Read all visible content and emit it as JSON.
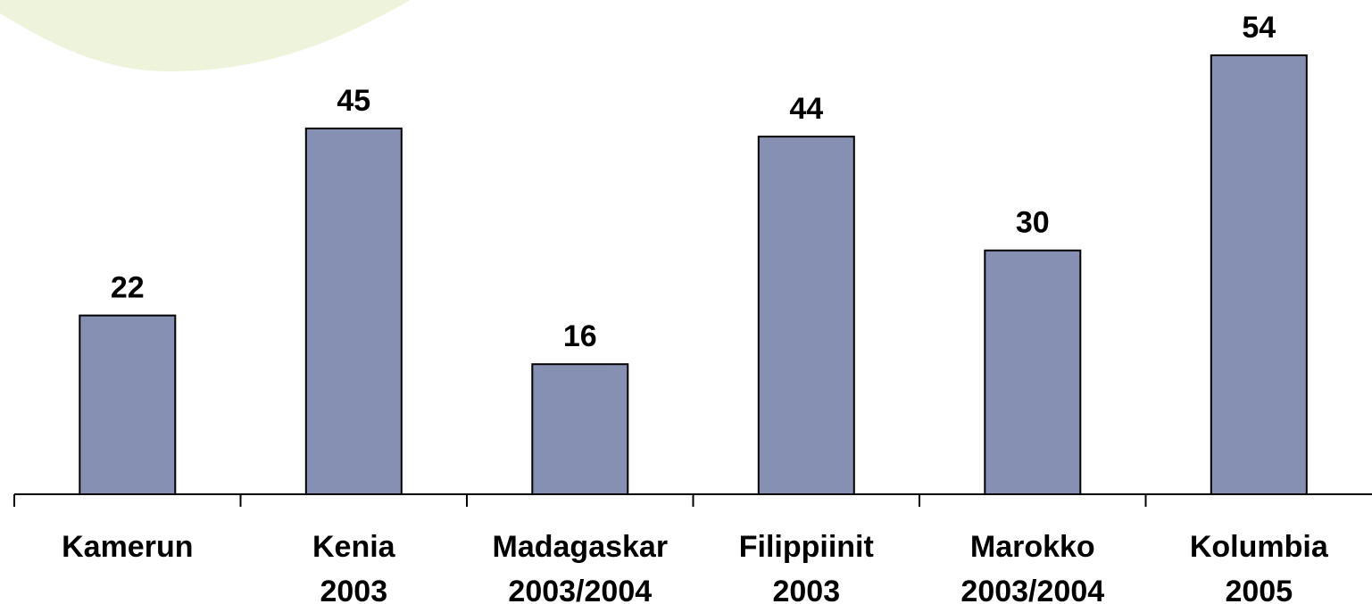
{
  "chart_data": {
    "type": "bar",
    "categories": [
      [
        "Kamerun"
      ],
      [
        "Kenia",
        "2003"
      ],
      [
        "Madagaskar",
        "2003/2004"
      ],
      [
        "Filippiinit",
        "2003"
      ],
      [
        "Marokko",
        "2003/2004"
      ],
      [
        "Kolumbia",
        "2005"
      ]
    ],
    "values": [
      22,
      45,
      16,
      44,
      30,
      54
    ],
    "data_labels": [
      "22",
      "45",
      "16",
      "44",
      "30",
      "54"
    ],
    "title": "",
    "xlabel": "",
    "ylabel": "",
    "ylim": [
      0,
      54
    ],
    "grid": false,
    "legend": "none",
    "colors": {
      "bar_fill": "#8690b2",
      "bar_stroke": "#000000",
      "decor_green": "#eef3dc"
    }
  }
}
